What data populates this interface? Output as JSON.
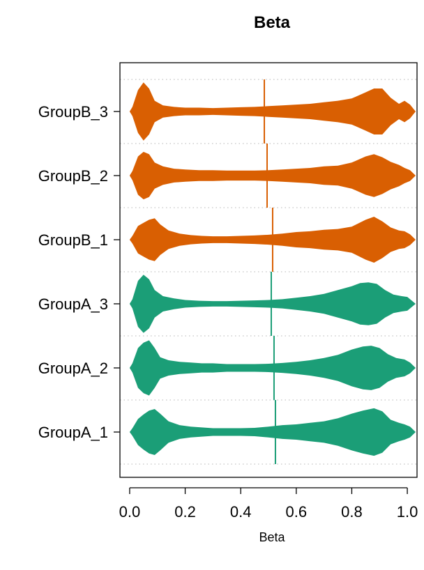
{
  "chart_data": {
    "type": "violin",
    "orientation": "horizontal",
    "title": "Beta",
    "xlabel": "Beta",
    "ylabel": "",
    "xlim": [
      -0.035,
      1.035
    ],
    "x_ticks": [
      0.0,
      0.2,
      0.4,
      0.6,
      0.8,
      1.0
    ],
    "x_tick_labels": [
      "0.0",
      "0.2",
      "0.4",
      "0.6",
      "0.8",
      "1.0"
    ],
    "grid": "horizontal dotted",
    "legend": "none",
    "categories": [
      "GroupB_3",
      "GroupB_2",
      "GroupB_1",
      "GroupA_3",
      "GroupA_2",
      "GroupA_1"
    ],
    "series": [
      {
        "name": "GroupB_3",
        "color": "#d95f02",
        "mean": 0.485,
        "density": [
          [
            0.0,
            0.0
          ],
          [
            0.01,
            0.06
          ],
          [
            0.03,
            0.28
          ],
          [
            0.05,
            0.38
          ],
          [
            0.07,
            0.3
          ],
          [
            0.09,
            0.14
          ],
          [
            0.12,
            0.08
          ],
          [
            0.16,
            0.06
          ],
          [
            0.2,
            0.05
          ],
          [
            0.25,
            0.05
          ],
          [
            0.3,
            0.045
          ],
          [
            0.35,
            0.05
          ],
          [
            0.4,
            0.055
          ],
          [
            0.45,
            0.06
          ],
          [
            0.5,
            0.07
          ],
          [
            0.55,
            0.08
          ],
          [
            0.6,
            0.09
          ],
          [
            0.65,
            0.1
          ],
          [
            0.7,
            0.12
          ],
          [
            0.75,
            0.14
          ],
          [
            0.8,
            0.17
          ],
          [
            0.85,
            0.25
          ],
          [
            0.88,
            0.3
          ],
          [
            0.91,
            0.3
          ],
          [
            0.94,
            0.18
          ],
          [
            0.97,
            0.1
          ],
          [
            0.99,
            0.14
          ],
          [
            1.01,
            0.09
          ],
          [
            1.03,
            0.0
          ]
        ]
      },
      {
        "name": "GroupB_2",
        "color": "#d95f02",
        "mean": 0.495,
        "density": [
          [
            0.0,
            0.0
          ],
          [
            0.01,
            0.06
          ],
          [
            0.03,
            0.25
          ],
          [
            0.05,
            0.31
          ],
          [
            0.07,
            0.28
          ],
          [
            0.09,
            0.17
          ],
          [
            0.12,
            0.12
          ],
          [
            0.16,
            0.09
          ],
          [
            0.2,
            0.08
          ],
          [
            0.25,
            0.07
          ],
          [
            0.3,
            0.07
          ],
          [
            0.35,
            0.065
          ],
          [
            0.4,
            0.065
          ],
          [
            0.45,
            0.065
          ],
          [
            0.5,
            0.07
          ],
          [
            0.55,
            0.08
          ],
          [
            0.6,
            0.09
          ],
          [
            0.65,
            0.1
          ],
          [
            0.7,
            0.12
          ],
          [
            0.75,
            0.13
          ],
          [
            0.8,
            0.17
          ],
          [
            0.85,
            0.25
          ],
          [
            0.88,
            0.28
          ],
          [
            0.91,
            0.24
          ],
          [
            0.94,
            0.18
          ],
          [
            0.97,
            0.14
          ],
          [
            0.99,
            0.1
          ],
          [
            1.01,
            0.07
          ],
          [
            1.03,
            0.0
          ]
        ]
      },
      {
        "name": "GroupB_1",
        "color": "#d95f02",
        "mean": 0.515,
        "density": [
          [
            0.0,
            0.0
          ],
          [
            0.01,
            0.05
          ],
          [
            0.03,
            0.18
          ],
          [
            0.05,
            0.22
          ],
          [
            0.07,
            0.26
          ],
          [
            0.09,
            0.28
          ],
          [
            0.11,
            0.2
          ],
          [
            0.14,
            0.12
          ],
          [
            0.18,
            0.08
          ],
          [
            0.22,
            0.06
          ],
          [
            0.26,
            0.05
          ],
          [
            0.3,
            0.045
          ],
          [
            0.35,
            0.045
          ],
          [
            0.4,
            0.05
          ],
          [
            0.45,
            0.055
          ],
          [
            0.5,
            0.065
          ],
          [
            0.55,
            0.08
          ],
          [
            0.6,
            0.1
          ],
          [
            0.65,
            0.11
          ],
          [
            0.7,
            0.13
          ],
          [
            0.75,
            0.14
          ],
          [
            0.8,
            0.17
          ],
          [
            0.85,
            0.26
          ],
          [
            0.88,
            0.3
          ],
          [
            0.91,
            0.24
          ],
          [
            0.94,
            0.16
          ],
          [
            0.97,
            0.12
          ],
          [
            0.99,
            0.11
          ],
          [
            1.01,
            0.07
          ],
          [
            1.03,
            0.0
          ]
        ]
      },
      {
        "name": "GroupA_3",
        "color": "#1b9e77",
        "mean": 0.51,
        "density": [
          [
            0.0,
            0.0
          ],
          [
            0.01,
            0.06
          ],
          [
            0.03,
            0.3
          ],
          [
            0.05,
            0.38
          ],
          [
            0.07,
            0.32
          ],
          [
            0.09,
            0.18
          ],
          [
            0.12,
            0.1
          ],
          [
            0.16,
            0.07
          ],
          [
            0.2,
            0.05
          ],
          [
            0.25,
            0.04
          ],
          [
            0.3,
            0.035
          ],
          [
            0.35,
            0.035
          ],
          [
            0.4,
            0.04
          ],
          [
            0.45,
            0.045
          ],
          [
            0.5,
            0.05
          ],
          [
            0.55,
            0.06
          ],
          [
            0.6,
            0.08
          ],
          [
            0.65,
            0.1
          ],
          [
            0.7,
            0.13
          ],
          [
            0.75,
            0.18
          ],
          [
            0.8,
            0.23
          ],
          [
            0.83,
            0.27
          ],
          [
            0.86,
            0.28
          ],
          [
            0.89,
            0.26
          ],
          [
            0.92,
            0.18
          ],
          [
            0.95,
            0.12
          ],
          [
            0.98,
            0.1
          ],
          [
            1.0,
            0.09
          ],
          [
            1.03,
            0.0
          ]
        ]
      },
      {
        "name": "GroupA_2",
        "color": "#1b9e77",
        "mean": 0.52,
        "density": [
          [
            0.0,
            0.0
          ],
          [
            0.01,
            0.06
          ],
          [
            0.03,
            0.26
          ],
          [
            0.05,
            0.33
          ],
          [
            0.07,
            0.36
          ],
          [
            0.09,
            0.26
          ],
          [
            0.11,
            0.14
          ],
          [
            0.14,
            0.1
          ],
          [
            0.18,
            0.08
          ],
          [
            0.22,
            0.07
          ],
          [
            0.26,
            0.06
          ],
          [
            0.3,
            0.06
          ],
          [
            0.35,
            0.05
          ],
          [
            0.4,
            0.05
          ],
          [
            0.45,
            0.05
          ],
          [
            0.5,
            0.055
          ],
          [
            0.55,
            0.065
          ],
          [
            0.6,
            0.08
          ],
          [
            0.65,
            0.1
          ],
          [
            0.7,
            0.13
          ],
          [
            0.75,
            0.17
          ],
          [
            0.8,
            0.24
          ],
          [
            0.84,
            0.28
          ],
          [
            0.87,
            0.29
          ],
          [
            0.9,
            0.26
          ],
          [
            0.93,
            0.18
          ],
          [
            0.96,
            0.13
          ],
          [
            0.99,
            0.11
          ],
          [
            1.01,
            0.07
          ],
          [
            1.03,
            0.0
          ]
        ]
      },
      {
        "name": "GroupA_1",
        "color": "#1b9e77",
        "mean": 0.525,
        "density": [
          [
            0.0,
            0.0
          ],
          [
            0.01,
            0.05
          ],
          [
            0.03,
            0.17
          ],
          [
            0.05,
            0.23
          ],
          [
            0.07,
            0.28
          ],
          [
            0.09,
            0.3
          ],
          [
            0.11,
            0.24
          ],
          [
            0.14,
            0.14
          ],
          [
            0.18,
            0.09
          ],
          [
            0.22,
            0.07
          ],
          [
            0.26,
            0.06
          ],
          [
            0.3,
            0.05
          ],
          [
            0.35,
            0.05
          ],
          [
            0.4,
            0.05
          ],
          [
            0.45,
            0.055
          ],
          [
            0.5,
            0.07
          ],
          [
            0.55,
            0.09
          ],
          [
            0.6,
            0.1
          ],
          [
            0.65,
            0.12
          ],
          [
            0.7,
            0.14
          ],
          [
            0.75,
            0.18
          ],
          [
            0.8,
            0.24
          ],
          [
            0.84,
            0.28
          ],
          [
            0.88,
            0.31
          ],
          [
            0.91,
            0.27
          ],
          [
            0.94,
            0.16
          ],
          [
            0.97,
            0.12
          ],
          [
            0.99,
            0.1
          ],
          [
            1.01,
            0.07
          ],
          [
            1.03,
            0.0
          ]
        ]
      }
    ]
  }
}
